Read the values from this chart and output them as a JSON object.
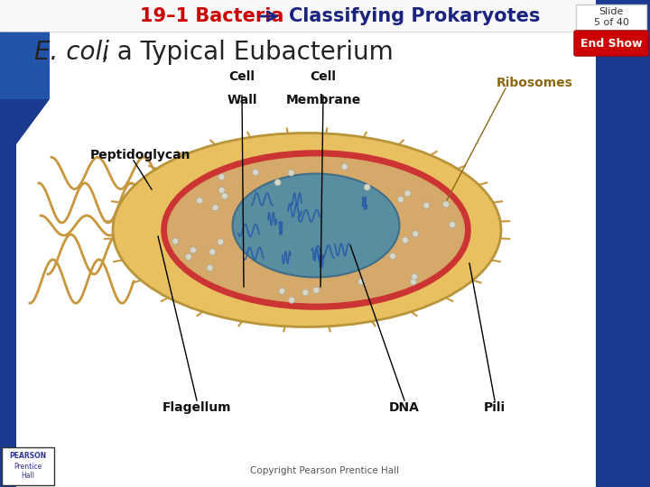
{
  "title_part1": "19–1 Bacteria",
  "title_part2": "Classifying Prokaryotes",
  "subtitle_italic": "E. coli",
  "subtitle_rest": ", a Typical Eubacterium",
  "label_peptidoglycan": "Peptidoglycan",
  "label_cell_wall": "Cell\nWall",
  "label_cell_membrane": "Cell\nMembrane",
  "label_ribosomes": "Ribosomes",
  "label_flagellum": "Flagellum",
  "label_dna": "DNA",
  "label_pili": "Pili",
  "footer_copyright": "Copyright Pearson Prentice Hall",
  "slide_info": "Slide\n5 of 40",
  "bg_color": "#ffffff",
  "title1_color": "#cc0000",
  "title2_color": "#1a237e",
  "subtitle_color": "#222222",
  "label_color": "#111111",
  "ribosomes_color": "#8B6914",
  "end_show_color": "#cc0000",
  "blue_stripe_color": "#1a3a8f",
  "blue_top_color": "#2255aa",
  "outer_cell_color": "#e8c060",
  "cytoplasm_color": "#d4a96a",
  "membrane_color": "#cc3333",
  "dna_color": "#4488aa",
  "flagella_color": "#c8963c"
}
